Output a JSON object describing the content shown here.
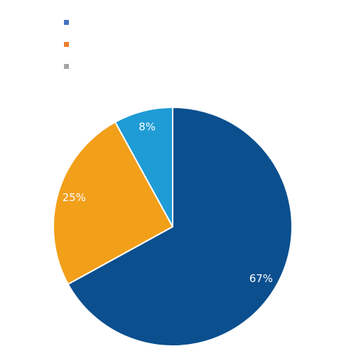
{
  "chart_data": {
    "type": "pie",
    "values": [
      67,
      25,
      8
    ],
    "value_labels": [
      "67%",
      "25%",
      "8%"
    ],
    "colors": [
      "#0b4f8f",
      "#f29f1a",
      "#1f9bd6"
    ],
    "legend_colors": [
      "#4472c4",
      "#ed7d31",
      "#a5a5a5"
    ]
  }
}
